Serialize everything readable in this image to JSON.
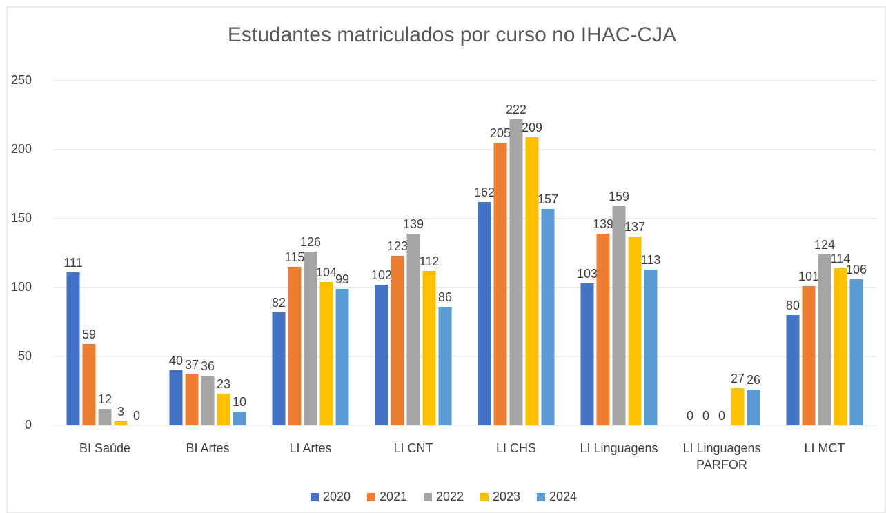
{
  "chart_data": {
    "type": "bar",
    "title": "Estudantes matriculados por curso no IHAC-CJA",
    "categories": [
      "BI Saúde",
      "BI Artes",
      "LI Artes",
      "LI CNT",
      "LI CHS",
      "LI Linguagens",
      "LI Linguagens PARFOR",
      "LI MCT"
    ],
    "series": [
      {
        "name": "2020",
        "color": "#4472c4",
        "values": [
          111,
          40,
          82,
          102,
          162,
          103,
          0,
          80
        ]
      },
      {
        "name": "2021",
        "color": "#ed7d31",
        "values": [
          59,
          37,
          115,
          123,
          205,
          139,
          0,
          101
        ]
      },
      {
        "name": "2022",
        "color": "#a5a5a5",
        "values": [
          12,
          36,
          126,
          139,
          222,
          159,
          0,
          124
        ]
      },
      {
        "name": "2023",
        "color": "#ffc000",
        "values": [
          3,
          23,
          104,
          112,
          209,
          137,
          27,
          114
        ]
      },
      {
        "name": "2024",
        "color": "#5b9bd5",
        "values": [
          0,
          10,
          99,
          86,
          157,
          113,
          26,
          106
        ]
      }
    ],
    "ylim": [
      0,
      250
    ],
    "yticks": [
      0,
      50,
      100,
      150,
      200,
      250
    ],
    "grid": true,
    "legend": "bottom"
  }
}
